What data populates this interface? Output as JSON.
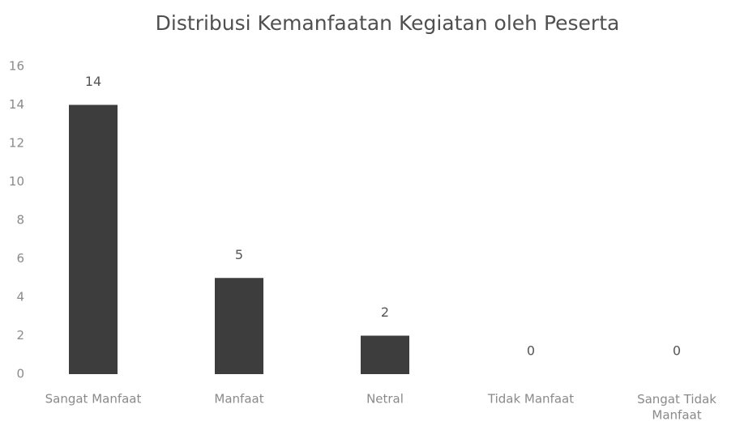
{
  "chart_data": {
    "type": "bar",
    "title": "Distribusi Kemanfaatan Kegiatan oleh Peserta",
    "categories": [
      "Sangat Manfaat",
      "Manfaat",
      "Netral",
      "Tidak Manfaat",
      "Sangat Tidak Manfaat"
    ],
    "values": [
      14,
      5,
      2,
      0,
      0
    ],
    "color": "#3d3d3d",
    "ylim": [
      0,
      16
    ],
    "yticks": [
      0,
      2,
      4,
      6,
      8,
      10,
      12,
      14,
      16
    ],
    "grid": false
  }
}
